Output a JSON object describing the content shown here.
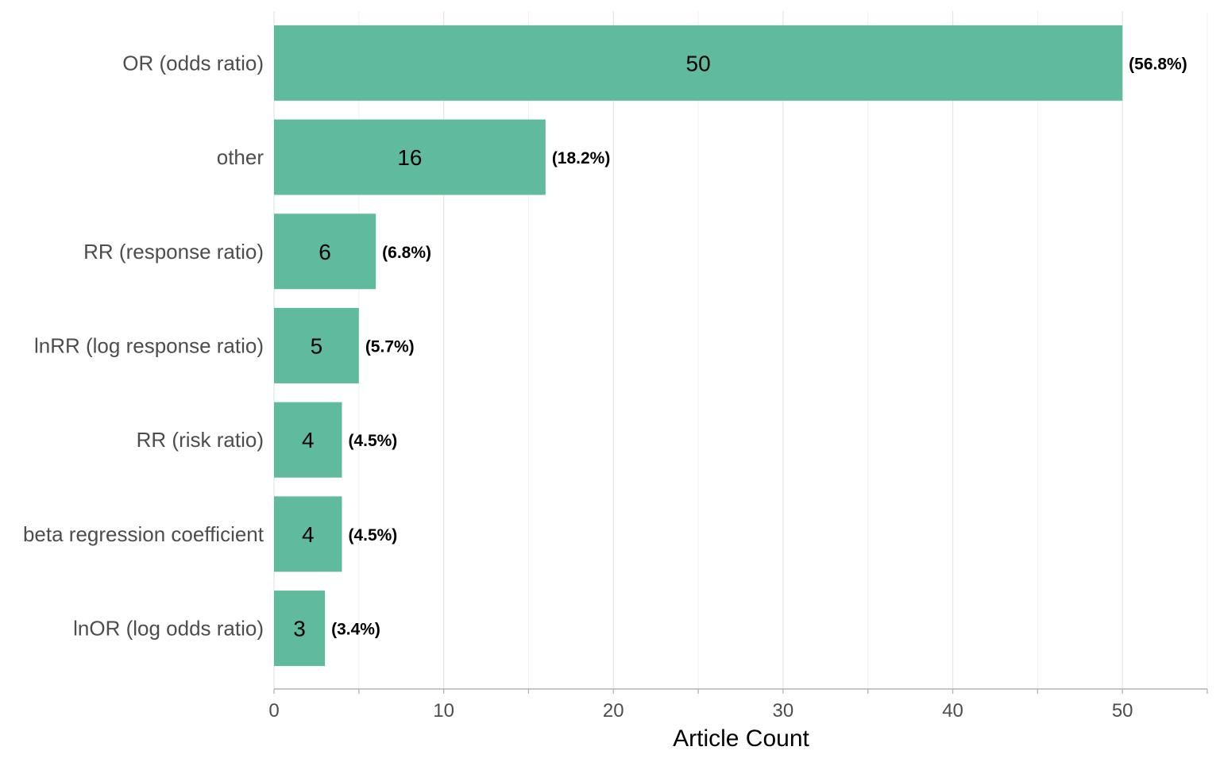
{
  "chart_data": {
    "type": "bar",
    "orientation": "horizontal",
    "title": "",
    "xlabel": "Article Count",
    "ylabel": "",
    "xlim": [
      0,
      55
    ],
    "x_ticks": [
      0,
      10,
      20,
      30,
      40,
      50
    ],
    "grid": true,
    "bar_color": "#5fba9e",
    "categories": [
      "OR (odds ratio)",
      "other",
      "RR (response ratio)",
      "lnRR (log response ratio)",
      "RR (risk ratio)",
      "beta regression coefficient",
      "lnOR (log odds ratio)"
    ],
    "values": [
      50,
      16,
      6,
      5,
      4,
      4,
      3
    ],
    "percent_labels": [
      "(56.8%)",
      "(18.2%)",
      "(6.8%)",
      "(5.7%)",
      "(4.5%)",
      "(4.5%)",
      "(3.4%)"
    ]
  }
}
